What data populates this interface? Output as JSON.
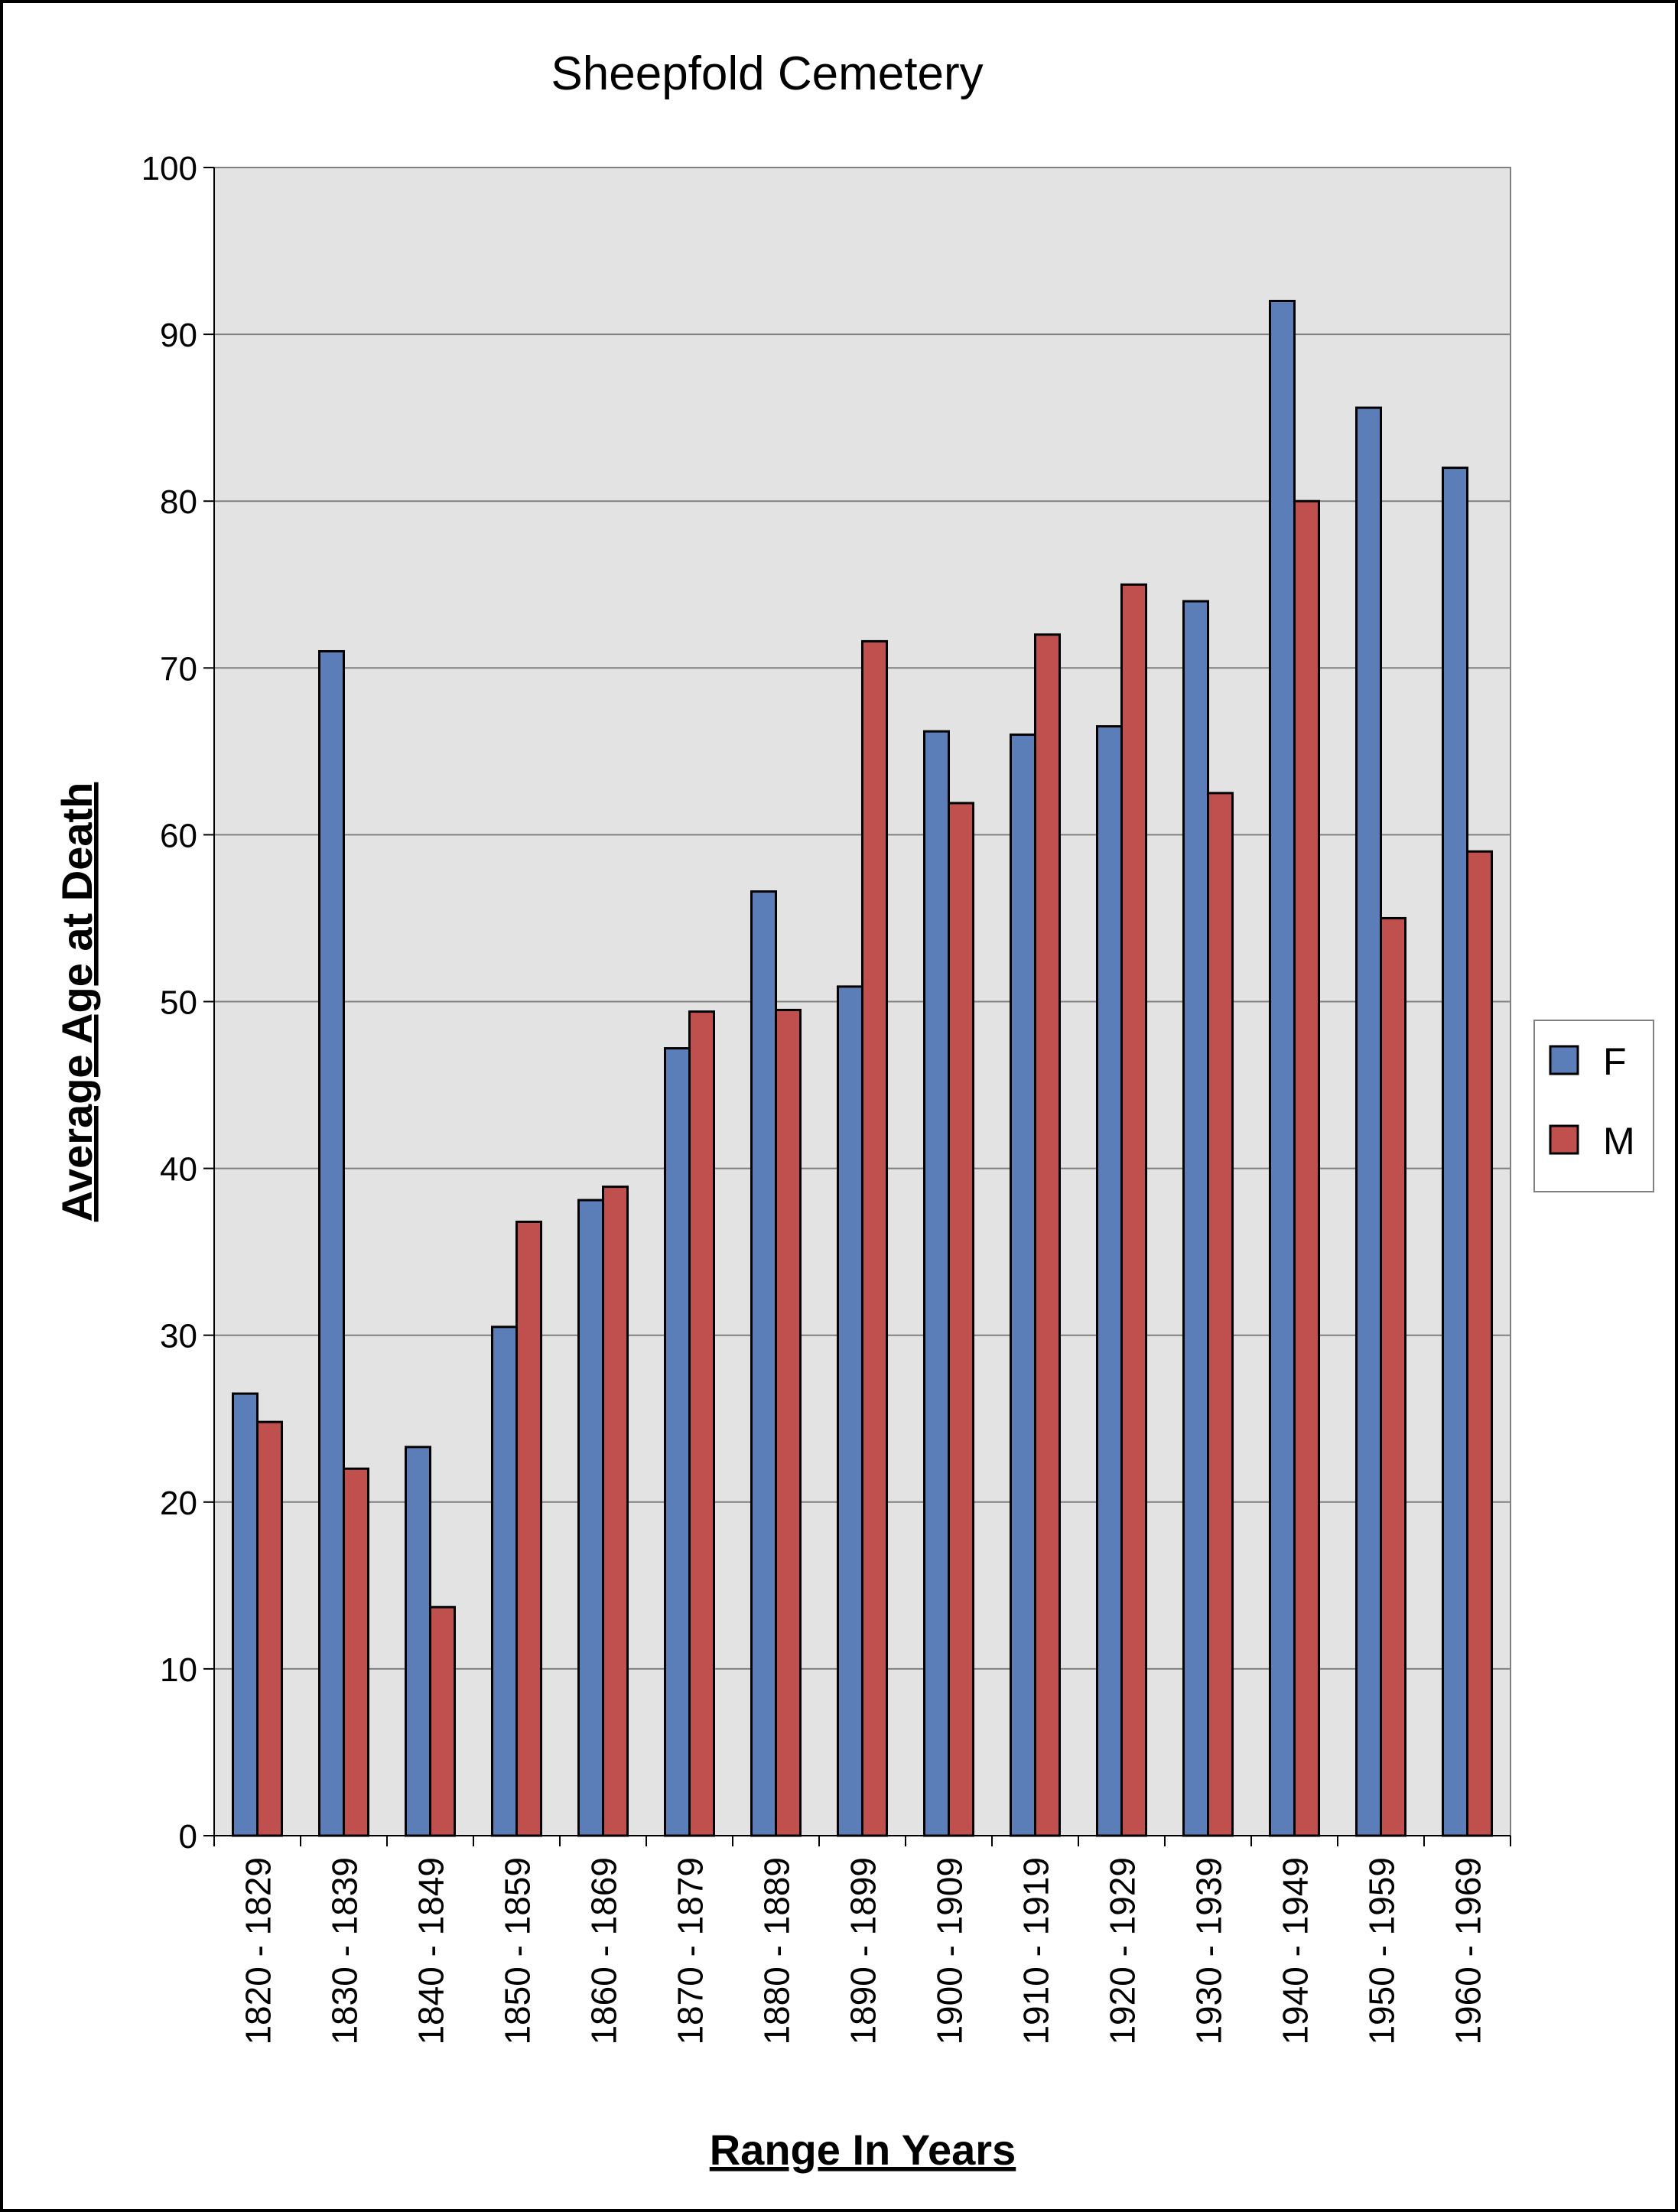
{
  "chart_data": {
    "type": "bar",
    "title": "Sheepfold Cemetery",
    "xlabel": "Range In Years",
    "ylabel": "Average Age at Death",
    "ylim": [
      0,
      100
    ],
    "yticks": [
      0,
      10,
      20,
      30,
      40,
      50,
      60,
      70,
      80,
      90,
      100
    ],
    "grid": true,
    "legend_position": "right",
    "categories": [
      "1820 - 1829",
      "1830 - 1839",
      "1840 - 1849",
      "1850 - 1859",
      "1860 - 1869",
      "1870 - 1879",
      "1880 - 1889",
      "1890 - 1899",
      "1900 - 1909",
      "1910 - 1919",
      "1920 - 1929",
      "1930 - 1939",
      "1940 - 1949",
      "1950 - 1959",
      "1960 - 1969"
    ],
    "series": [
      {
        "name": "F",
        "color": "#5b7db8",
        "values": [
          26.5,
          71,
          23.3,
          30.5,
          38.1,
          47.2,
          56.6,
          50.9,
          66.2,
          66.0,
          66.5,
          74.0,
          92.0,
          85.6,
          82.0
        ]
      },
      {
        "name": "M",
        "color": "#c0504d",
        "values": [
          24.8,
          22.0,
          13.7,
          36.8,
          38.9,
          49.4,
          49.5,
          71.6,
          61.9,
          72.0,
          75.0,
          62.5,
          80.0,
          55.0,
          59.0
        ]
      }
    ],
    "plot_background": "#e3e3e3",
    "gridline_color": "#808080"
  }
}
